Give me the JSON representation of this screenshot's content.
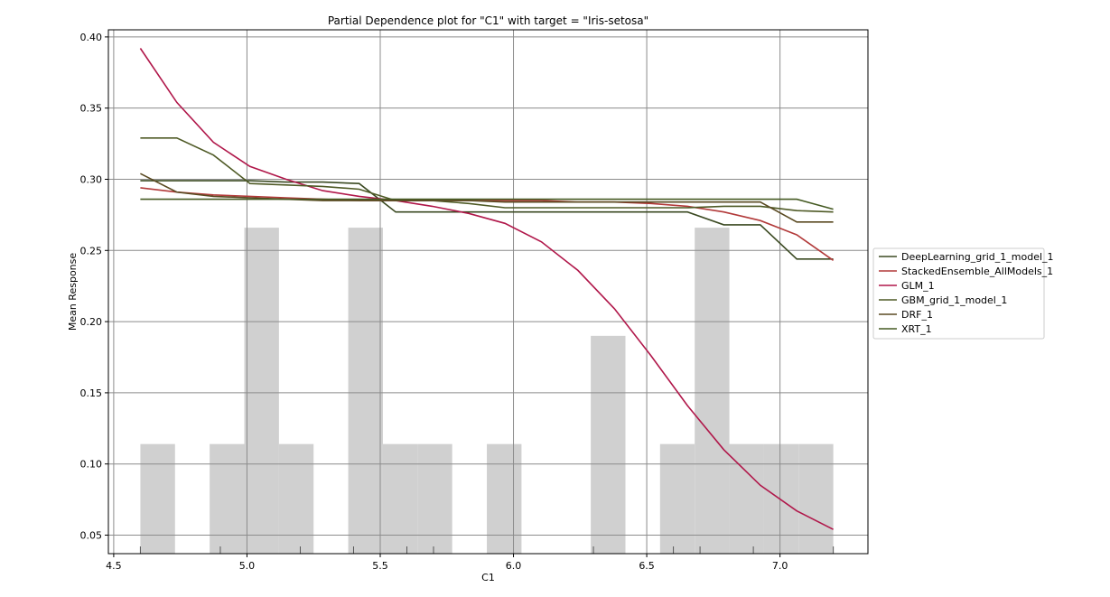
{
  "chart_data": {
    "type": "line",
    "title": "Partial Dependence plot for \"C1\" with target = \"Iris-setosa\"",
    "xlabel": "C1",
    "ylabel": "Mean Response",
    "xlim": [
      4.48,
      7.33
    ],
    "ylim": [
      0.037,
      0.405
    ],
    "x_ticks": [
      "4.5",
      "5.0",
      "5.5",
      "6.0",
      "6.5",
      "7.0"
    ],
    "x_tick_values": [
      4.5,
      5.0,
      5.5,
      6.0,
      6.5,
      7.0
    ],
    "y_ticks": [
      "0.05",
      "0.10",
      "0.15",
      "0.20",
      "0.25",
      "0.30",
      "0.35",
      "0.40"
    ],
    "y_tick_values": [
      0.05,
      0.1,
      0.15,
      0.2,
      0.25,
      0.3,
      0.35,
      0.4
    ],
    "grid": true,
    "legend_placement": "right",
    "histogram": {
      "color": "#d0d0d0",
      "bin_width": 0.13,
      "bins": [
        {
          "x": 4.6,
          "value": 0.114
        },
        {
          "x": 4.86,
          "value": 0.114
        },
        {
          "x": 4.99,
          "value": 0.266
        },
        {
          "x": 5.12,
          "value": 0.114
        },
        {
          "x": 5.38,
          "value": 0.266
        },
        {
          "x": 5.51,
          "value": 0.114
        },
        {
          "x": 5.64,
          "value": 0.114
        },
        {
          "x": 5.9,
          "value": 0.114
        },
        {
          "x": 6.29,
          "value": 0.19
        },
        {
          "x": 6.55,
          "value": 0.114
        },
        {
          "x": 6.68,
          "value": 0.266
        },
        {
          "x": 6.81,
          "value": 0.114
        },
        {
          "x": 6.94,
          "value": 0.114
        },
        {
          "x": 7.07,
          "value": 0.114
        }
      ]
    },
    "rug_x": [
      4.6,
      4.9,
      5.2,
      5.4,
      5.6,
      5.7,
      6.3,
      6.6,
      6.7,
      6.9,
      7.2
    ],
    "x": [
      4.6,
      4.737,
      4.874,
      5.011,
      5.147,
      5.284,
      5.421,
      5.558,
      5.695,
      5.832,
      5.968,
      6.105,
      6.242,
      6.379,
      6.516,
      6.653,
      6.789,
      6.926,
      7.063,
      7.2
    ],
    "series": [
      {
        "name": "DeepLearning_grid_1_model_1",
        "color": "#3b4a22",
        "values": [
          0.299,
          0.299,
          0.299,
          0.299,
          0.298,
          0.298,
          0.297,
          0.277,
          0.277,
          0.277,
          0.277,
          0.277,
          0.277,
          0.277,
          0.277,
          0.277,
          0.268,
          0.268,
          0.244,
          0.244
        ]
      },
      {
        "name": "StackedEnsemble_AllModels_1",
        "color": "#b23a3a",
        "values": [
          0.294,
          0.291,
          0.289,
          0.288,
          0.287,
          0.286,
          0.285,
          0.285,
          0.285,
          0.285,
          0.285,
          0.285,
          0.284,
          0.284,
          0.283,
          0.281,
          0.277,
          0.271,
          0.261,
          0.243
        ]
      },
      {
        "name": "GLM_1",
        "color": "#b0174a",
        "values": [
          0.392,
          0.354,
          0.326,
          0.309,
          0.3,
          0.292,
          0.288,
          0.285,
          0.281,
          0.276,
          0.269,
          0.256,
          0.236,
          0.209,
          0.176,
          0.141,
          0.11,
          0.085,
          0.067,
          0.054
        ]
      },
      {
        "name": "GBM_grid_1_model_1",
        "color": "#4f5a26",
        "values": [
          0.329,
          0.329,
          0.317,
          0.297,
          0.296,
          0.295,
          0.293,
          0.285,
          0.285,
          0.283,
          0.28,
          0.28,
          0.28,
          0.28,
          0.28,
          0.28,
          0.281,
          0.281,
          0.278,
          0.277
        ]
      },
      {
        "name": "DRF_1",
        "color": "#5a4a22",
        "values": [
          0.304,
          0.291,
          0.288,
          0.287,
          0.286,
          0.285,
          0.285,
          0.285,
          0.285,
          0.285,
          0.284,
          0.284,
          0.284,
          0.284,
          0.284,
          0.284,
          0.284,
          0.284,
          0.27,
          0.27
        ]
      },
      {
        "name": "XRT_1",
        "color": "#455a22",
        "values": [
          0.286,
          0.286,
          0.286,
          0.286,
          0.286,
          0.286,
          0.286,
          0.286,
          0.286,
          0.286,
          0.286,
          0.286,
          0.286,
          0.286,
          0.286,
          0.286,
          0.286,
          0.286,
          0.286,
          0.279
        ]
      }
    ]
  }
}
